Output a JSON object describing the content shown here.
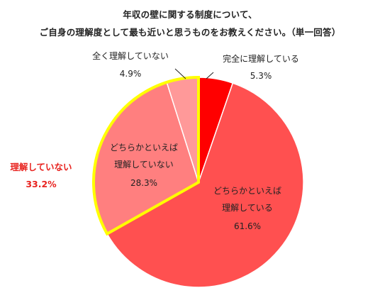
{
  "title_lines": [
    "年収の壁に関する制度について、",
    "ご自身の理解度として最も近いと思うものをお教えください。（単一回答）"
  ],
  "chart_data": {
    "type": "pie",
    "start": "12 o'clock, clockwise",
    "slices": [
      {
        "label_lines": [
          "完全に理解している"
        ],
        "value": 5.3,
        "value_text": "5.3%",
        "color": "#ff0000"
      },
      {
        "label_lines": [
          "どちらかといえば",
          "理解している"
        ],
        "value": 61.6,
        "value_text": "61.6%",
        "color": "#ff5050"
      },
      {
        "label_lines": [
          "どちらかといえば",
          "理解していない"
        ],
        "value": 28.3,
        "value_text": "28.3%",
        "color": "#ff7f7f"
      },
      {
        "label_lines": [
          "全く理解していない"
        ],
        "value": 4.9,
        "value_text": "4.9%",
        "color": "#ff9999"
      }
    ],
    "highlight": {
      "label": "理解していない",
      "value_text": "33.2%",
      "slices": [
        2,
        3
      ],
      "outline_color": "#ffff00",
      "text_color": "#e8231f"
    }
  }
}
